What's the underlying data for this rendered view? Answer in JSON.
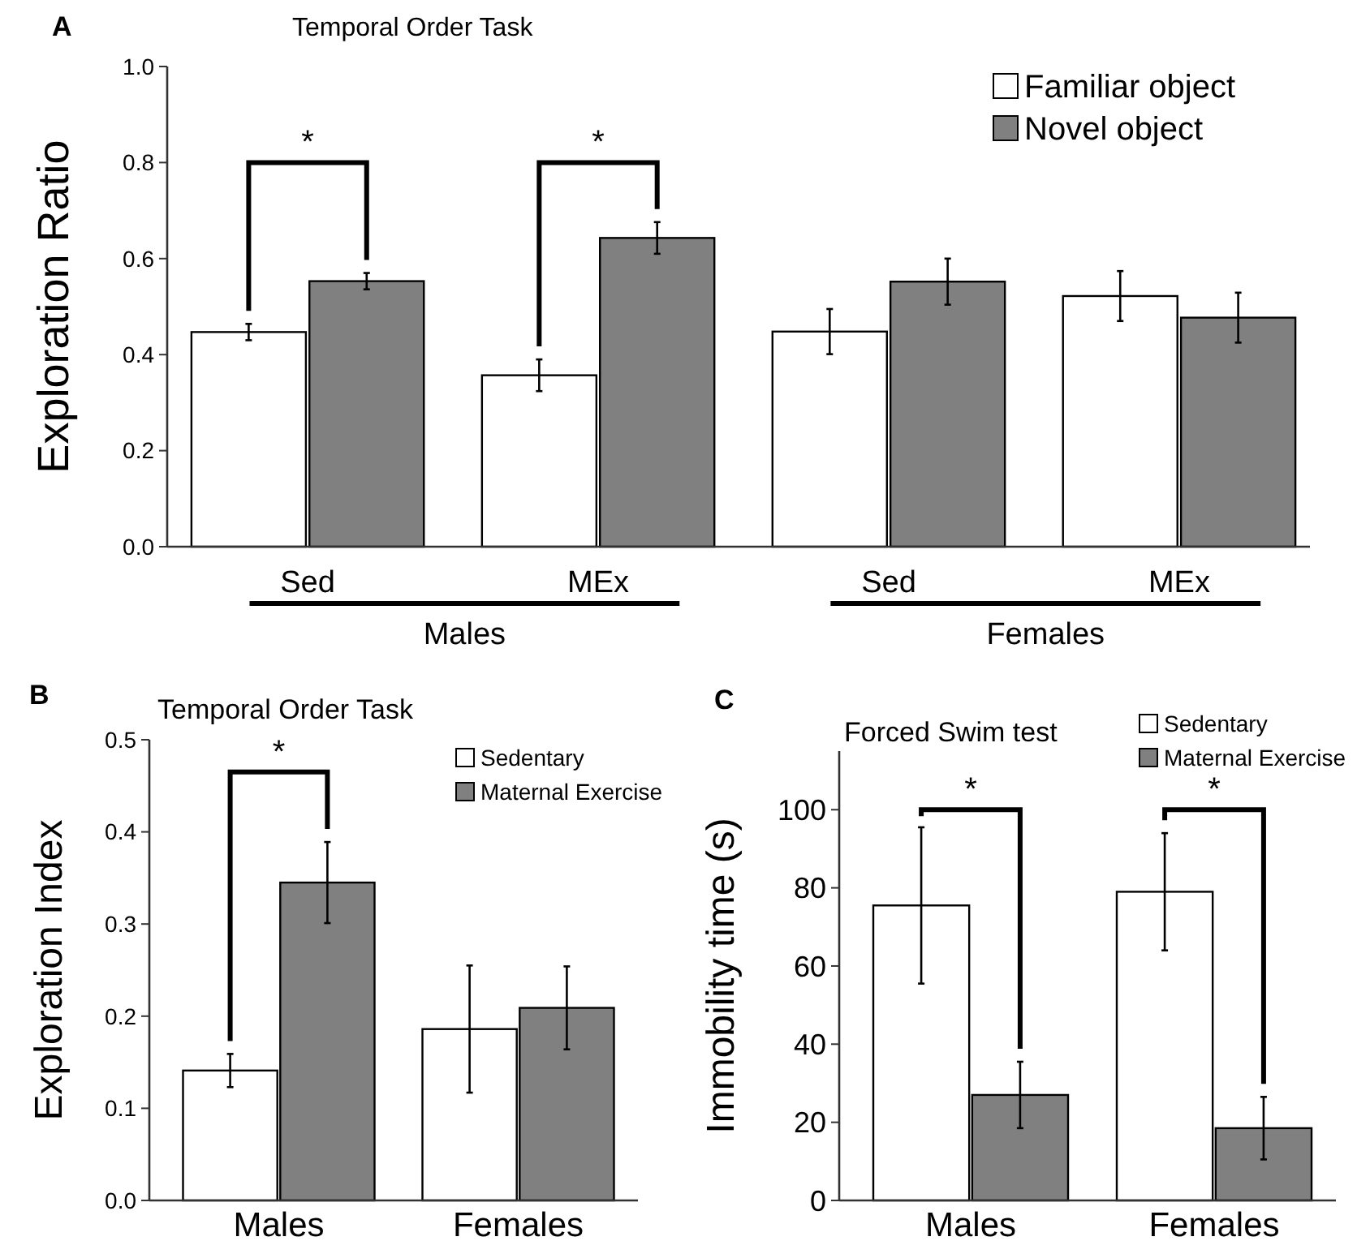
{
  "chart_data": [
    {
      "type": "bar",
      "title": "Temporal Order Task",
      "ylabel": "Exploration Ratio",
      "categories": [
        "Sed",
        "MEx",
        "Sed",
        "MEx"
      ],
      "series": [
        {
          "name": "Familiar object",
          "color": "#ffffff",
          "values": [
            0.447,
            0.357,
            0.448,
            0.522
          ],
          "errors": [
            0.017,
            0.033,
            0.047,
            0.052
          ]
        },
        {
          "name": "Novel object",
          "color": "#808080",
          "values": [
            0.553,
            0.643,
            0.552,
            0.477
          ],
          "errors": [
            0.017,
            0.033,
            0.048,
            0.052
          ]
        }
      ],
      "ylim": [
        0,
        1
      ],
      "yticks": [
        {
          "value": 0,
          "label": "0.0"
        },
        {
          "value": 0.2,
          "label": "0.2"
        },
        {
          "value": 0.4,
          "label": "0.4"
        },
        {
          "value": 0.6,
          "label": "0.6"
        },
        {
          "value": 0.8,
          "label": "0.8"
        },
        {
          "value": 1,
          "label": "1.0"
        }
      ],
      "legend": "top right",
      "grid": false,
      "annotations": [
        "A",
        "*",
        "*",
        "Males",
        "Females"
      ]
    },
    {
      "type": "bar",
      "title": "Temporal Order Task",
      "ylabel": "Exploration Index",
      "categories": [
        "Males",
        "Females"
      ],
      "series": [
        {
          "name": "Sedentary",
          "color": "#ffffff",
          "values": [
            0.141,
            0.186
          ],
          "errors": [
            0.018,
            0.069
          ]
        },
        {
          "name": "Maternal Exercise",
          "color": "#808080",
          "values": [
            0.345,
            0.209
          ],
          "errors": [
            0.044,
            0.045
          ]
        }
      ],
      "ylim": [
        0,
        0.5
      ],
      "yticks": [
        {
          "value": 0,
          "label": "0.0"
        },
        0.1,
        0.2,
        0.3,
        0.4,
        0.5
      ],
      "legend": "top right",
      "grid": false,
      "annotations": [
        "B",
        "*"
      ]
    },
    {
      "type": "bar",
      "title": "Forced Swim test",
      "ylabel": "Immobility time (s)",
      "categories": [
        "Males",
        "Females"
      ],
      "series": [
        {
          "name": "Sedentary",
          "color": "#ffffff",
          "values": [
            75.5,
            79
          ],
          "errors": [
            20,
            15
          ]
        },
        {
          "name": "Maternal Exercise",
          "color": "#808080",
          "values": [
            27,
            18.5
          ],
          "errors": [
            8.5,
            8
          ]
        }
      ],
      "ylim": [
        0,
        115
      ],
      "yticks": [
        0,
        20,
        40,
        60,
        80,
        100
      ],
      "legend": "top right",
      "grid": false,
      "annotations": [
        "C",
        "*",
        "*"
      ]
    }
  ]
}
